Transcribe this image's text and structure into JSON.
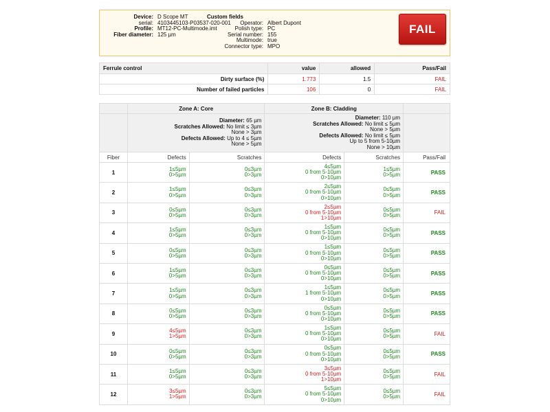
{
  "device_info": [
    {
      "label": "Device:",
      "value": "D Scope MT"
    },
    {
      "label": "serial:",
      "value": "4103445103-P03537-020-001"
    },
    {
      "label": "Profile:",
      "value": "MT12-PC-Multimode.imt"
    },
    {
      "label": "Fiber diameter:",
      "value": "125 µm"
    }
  ],
  "custom_fields": {
    "title": "Custom fields",
    "items": [
      {
        "label": "Operator:",
        "value": "Albert Dupont"
      },
      {
        "label": "Polish type:",
        "value": "PC"
      },
      {
        "label": "Serial number:",
        "value": "155"
      },
      {
        "label": "Multimode:",
        "value": "true"
      },
      {
        "label": "Connector type:",
        "value": "MPO"
      }
    ]
  },
  "overall_result": "FAIL",
  "colors": {
    "fail": "#e41b1b",
    "pass": "#1d8a1d",
    "accent_border": "#f0c27a"
  },
  "ferrule": {
    "title": "Ferrule control",
    "headers": [
      "value",
      "allowed",
      "Pass/Fail"
    ],
    "rows": [
      {
        "label": "Dirty surface (%)",
        "value": "1.773",
        "allowed": "1.5",
        "result": "FAIL"
      },
      {
        "label": "Number of failed particles",
        "value": "106",
        "allowed": "0",
        "result": "FAIL"
      }
    ]
  },
  "zones": {
    "zone_a": {
      "title": "Zone A: Core",
      "diameter_label": "Diameter:",
      "diameter": "65 µm",
      "scratches_label": "Scratches Allowed:",
      "scratches": [
        "No limit ≤ 3µm",
        "None > 3µm"
      ],
      "defects_label": "Defects Allowed:",
      "defects": [
        "Up to 4 ≤ 5µm",
        "None > 5µm"
      ]
    },
    "zone_b": {
      "title": "Zone B: Cladding",
      "diameter_label": "Diameter:",
      "diameter": "110 µm",
      "scratches_label": "Scratches Allowed:",
      "scratches": [
        "No limit ≤ 5µm",
        "None > 5µm"
      ],
      "defects_label": "Defects Allowed:",
      "defects": [
        "No limit ≤ 5µm",
        "Up to 5 from 5-10µm",
        "None > 10µm"
      ]
    },
    "columns": [
      "Fiber",
      "Defects",
      "Scratches",
      "Defects",
      "Scratches",
      "Pass/Fail"
    ],
    "rows": [
      {
        "fiber": "1",
        "a_def": [
          "1≤5µm",
          "0>5µm"
        ],
        "a_def_fail": false,
        "a_scr": [
          "0≤3µm",
          "0>3µm"
        ],
        "a_scr_fail": false,
        "b_def": [
          "4≤5µm",
          "0 from 5-10µm",
          "0>10µm"
        ],
        "b_def_fail": false,
        "b_scr": [
          "1≤5µm",
          "0>5µm"
        ],
        "b_scr_fail": false,
        "result": "PASS"
      },
      {
        "fiber": "2",
        "a_def": [
          "1≤5µm",
          "0>5µm"
        ],
        "a_def_fail": false,
        "a_scr": [
          "0≤3µm",
          "0>3µm"
        ],
        "a_scr_fail": false,
        "b_def": [
          "2≤5µm",
          "0 from 5-10µm",
          "0>10µm"
        ],
        "b_def_fail": false,
        "b_scr": [
          "0≤5µm",
          "0>5µm"
        ],
        "b_scr_fail": false,
        "result": "PASS"
      },
      {
        "fiber": "3",
        "a_def": [
          "0≤5µm",
          "0>5µm"
        ],
        "a_def_fail": false,
        "a_scr": [
          "0≤3µm",
          "0>3µm"
        ],
        "a_scr_fail": false,
        "b_def": [
          "2≤5µm",
          "0 from 5-10µm",
          "1>10µm"
        ],
        "b_def_fail": true,
        "b_scr": [
          "0≤5µm",
          "0>5µm"
        ],
        "b_scr_fail": false,
        "result": "FAIL"
      },
      {
        "fiber": "4",
        "a_def": [
          "1≤5µm",
          "0>5µm"
        ],
        "a_def_fail": false,
        "a_scr": [
          "0≤3µm",
          "0>3µm"
        ],
        "a_scr_fail": false,
        "b_def": [
          "1≤5µm",
          "0 from 5-10µm",
          "0>10µm"
        ],
        "b_def_fail": false,
        "b_scr": [
          "0≤5µm",
          "0>5µm"
        ],
        "b_scr_fail": false,
        "result": "PASS"
      },
      {
        "fiber": "5",
        "a_def": [
          "0≤5µm",
          "0>5µm"
        ],
        "a_def_fail": false,
        "a_scr": [
          "0≤3µm",
          "0>3µm"
        ],
        "a_scr_fail": false,
        "b_def": [
          "1≤5µm",
          "0 from 5-10µm",
          "0>10µm"
        ],
        "b_def_fail": false,
        "b_scr": [
          "0≤5µm",
          "0>5µm"
        ],
        "b_scr_fail": false,
        "result": "PASS"
      },
      {
        "fiber": "6",
        "a_def": [
          "1≤5µm",
          "0>5µm"
        ],
        "a_def_fail": false,
        "a_scr": [
          "0≤3µm",
          "0>3µm"
        ],
        "a_scr_fail": false,
        "b_def": [
          "0≤5µm",
          "0 from 5-10µm",
          "0>10µm"
        ],
        "b_def_fail": false,
        "b_scr": [
          "0≤5µm",
          "0>5µm"
        ],
        "b_scr_fail": false,
        "result": "PASS"
      },
      {
        "fiber": "7",
        "a_def": [
          "1≤5µm",
          "0>5µm"
        ],
        "a_def_fail": false,
        "a_scr": [
          "0≤3µm",
          "0>3µm"
        ],
        "a_scr_fail": false,
        "b_def": [
          "1≤5µm",
          "1 from 5-10µm",
          "0>10µm"
        ],
        "b_def_fail": false,
        "b_scr": [
          "0≤5µm",
          "0>5µm"
        ],
        "b_scr_fail": false,
        "result": "PASS"
      },
      {
        "fiber": "8",
        "a_def": [
          "0≤5µm",
          "0>5µm"
        ],
        "a_def_fail": false,
        "a_scr": [
          "0≤3µm",
          "0>3µm"
        ],
        "a_scr_fail": false,
        "b_def": [
          "0≤5µm",
          "0 from 5-10µm",
          "0>10µm"
        ],
        "b_def_fail": false,
        "b_scr": [
          "0≤5µm",
          "0>5µm"
        ],
        "b_scr_fail": false,
        "result": "PASS"
      },
      {
        "fiber": "9",
        "a_def": [
          "4≤5µm",
          "1>5µm"
        ],
        "a_def_fail": true,
        "a_scr": [
          "0≤3µm",
          "0>3µm"
        ],
        "a_scr_fail": false,
        "b_def": [
          "1≤5µm",
          "0 from 5-10µm",
          "0>10µm"
        ],
        "b_def_fail": false,
        "b_scr": [
          "0≤5µm",
          "0>5µm"
        ],
        "b_scr_fail": false,
        "result": "FAIL"
      },
      {
        "fiber": "10",
        "a_def": [
          "0≤5µm",
          "0>5µm"
        ],
        "a_def_fail": false,
        "a_scr": [
          "0≤3µm",
          "0>3µm"
        ],
        "a_scr_fail": false,
        "b_def": [
          "0≤5µm",
          "0 from 5-10µm",
          "0>10µm"
        ],
        "b_def_fail": false,
        "b_scr": [
          "0≤5µm",
          "0>5µm"
        ],
        "b_scr_fail": false,
        "result": "PASS"
      },
      {
        "fiber": "11",
        "a_def": [
          "1≤5µm",
          "0>5µm"
        ],
        "a_def_fail": false,
        "a_scr": [
          "0≤3µm",
          "0>3µm"
        ],
        "a_scr_fail": false,
        "b_def": [
          "3≤5µm",
          "0 from 5-10µm",
          "1>10µm"
        ],
        "b_def_fail": true,
        "b_scr": [
          "0≤5µm",
          "0>5µm"
        ],
        "b_scr_fail": false,
        "result": "FAIL"
      },
      {
        "fiber": "12",
        "a_def": [
          "3≤5µm",
          "1>5µm"
        ],
        "a_def_fail": true,
        "a_scr": [
          "0≤3µm",
          "0>3µm"
        ],
        "a_scr_fail": false,
        "b_def": [
          "5≤5µm",
          "0 from 5-10µm",
          "0>10µm"
        ],
        "b_def_fail": false,
        "b_scr": [
          "0≤5µm",
          "0>5µm"
        ],
        "b_scr_fail": false,
        "result": "FAIL"
      }
    ]
  }
}
